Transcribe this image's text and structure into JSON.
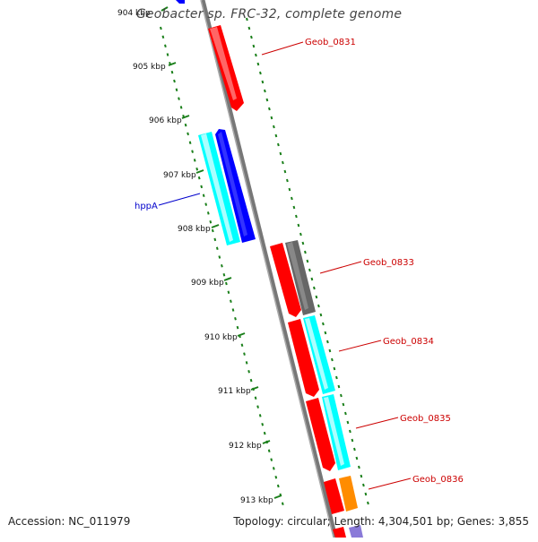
{
  "title": "Geobacter sp. FRC-32, complete genome",
  "footer": {
    "accession": "Accession: NC_011979",
    "summary": "Topology: circular; Length: 4,304,501 bp; Genes: 3,855"
  },
  "scale_labels": [
    "904 kbp",
    "905 kbp",
    "906 kbp",
    "907 kbp",
    "908 kbp",
    "909 kbp",
    "910 kbp",
    "911 kbp",
    "912 kbp",
    "913 kbp"
  ],
  "gene_labels": {
    "geob_0831": "Geob_0831",
    "hppA": "hppA",
    "geob_0833": "Geob_0833",
    "geob_0834": "Geob_0834",
    "geob_0835": "Geob_0835",
    "geob_0836": "Geob_0836"
  },
  "colors": {
    "red": "#ff0000",
    "cyan": "#00ffff",
    "blue": "#0000ff",
    "gray": "#666666",
    "orange": "#ff8c00",
    "purple": "#8a7ad8",
    "tick_green": "#1a7f1a",
    "label_red": "#cc0000",
    "label_blue": "#0000cc"
  }
}
